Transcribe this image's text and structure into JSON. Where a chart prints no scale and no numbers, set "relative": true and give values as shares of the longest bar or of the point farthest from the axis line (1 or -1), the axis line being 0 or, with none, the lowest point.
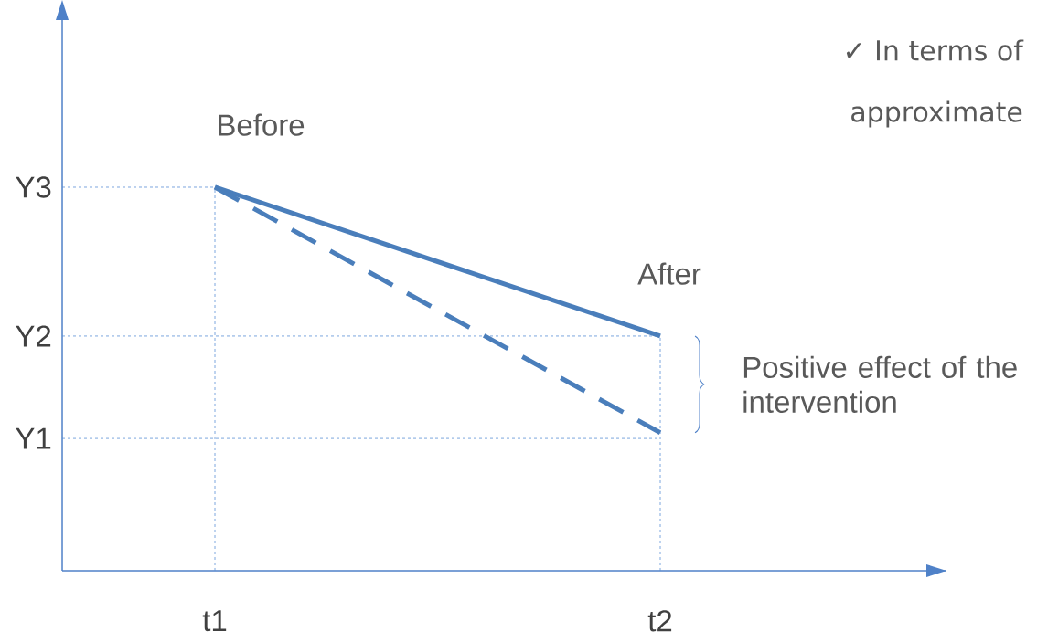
{
  "chart_data": {
    "type": "line",
    "relative": true,
    "categories": [
      "t1",
      "t2"
    ],
    "series": [
      {
        "color": "#4a7ebb",
        "values": [
          1,
          0.612
        ],
        "line_style": "solid"
      },
      {
        "color": "#4a7ebb",
        "values": [
          1,
          0.36
        ],
        "line_style": "dashed"
      }
    ],
    "ref_lines": [
      {
        "axis": "y",
        "value": 1,
        "label": "Y3",
        "color": "#5b8fd6",
        "line_style": "dashed"
      },
      {
        "axis": "y",
        "value": 0.612,
        "label": "Y2",
        "color": "#5b8fd6",
        "line_style": "dashed"
      },
      {
        "axis": "y",
        "value": 0.345,
        "label": "Y1",
        "color": "#5b8fd6",
        "line_style": "dashed"
      },
      {
        "axis": "x",
        "value": "t1",
        "color": "#5b8fd6",
        "line_style": "dashed"
      },
      {
        "axis": "x",
        "value": "t2",
        "color": "#5b8fd6",
        "line_style": "dashed"
      }
    ],
    "annotations": [
      {
        "text": "Before",
        "x": "t1",
        "y": 1
      },
      {
        "text": "After",
        "x": "t2",
        "y": 0.612
      },
      "Positive effect of the intervention",
      "✓ In terms of",
      "approximate"
    ]
  }
}
